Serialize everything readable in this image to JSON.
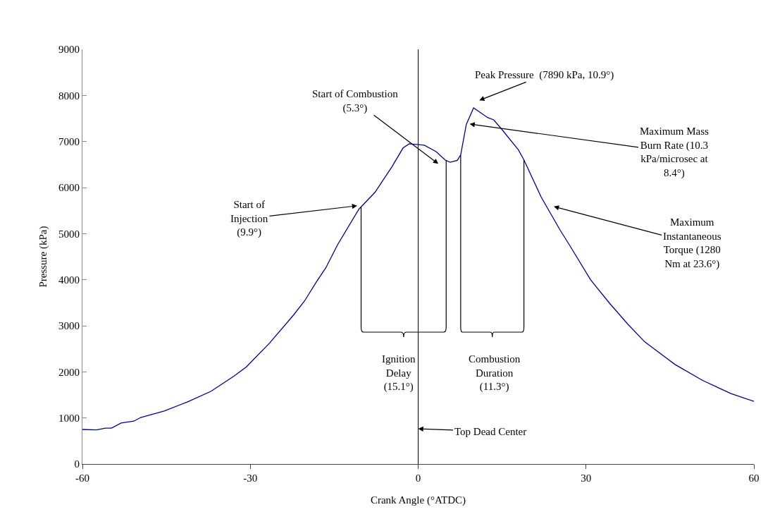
{
  "chart_data": {
    "type": "line",
    "xlabel": "Crank Angle (°ATDC)",
    "ylabel": "Pressure (kPa)",
    "series": [
      {
        "color": "#000099",
        "x": [
          -60,
          -57.5,
          -55.9,
          -54.8,
          -53.1,
          -50.8,
          -49.6,
          -45.4,
          -41.2,
          -37,
          -32.9,
          -30.7,
          -26.6,
          -22.3,
          -20.3,
          -18.2,
          -16.5,
          -14.4,
          -10.6,
          -7.7,
          -4.7,
          -2.7,
          -1.6,
          1.1,
          3.2,
          4.8,
          5.7,
          7,
          7.6,
          8.6,
          9.9,
          11.1,
          12.4,
          13.5,
          14.9,
          17.9,
          18.9,
          22,
          25.4,
          27,
          30.8,
          34.2,
          37.5,
          40.5,
          45.9,
          50.9,
          55.9,
          60
        ],
        "values": [
          750,
          740,
          780,
          780,
          890,
          930,
          1010,
          1150,
          1350,
          1580,
          1910,
          2110,
          2620,
          3230,
          3540,
          3950,
          4260,
          4760,
          5530,
          5900,
          6450,
          6860,
          6950,
          6920,
          6780,
          6600,
          6550,
          6590,
          6710,
          7370,
          7730,
          7630,
          7520,
          7470,
          7270,
          6820,
          6600,
          5790,
          5070,
          4760,
          4000,
          3490,
          3030,
          2650,
          2160,
          1810,
          1530,
          1360
        ]
      }
    ],
    "xlim": [
      -60,
      60
    ],
    "xticks": [
      -60,
      -30,
      0,
      30,
      60
    ],
    "ylim": [
      0,
      9000
    ],
    "yticks": [
      0,
      1000,
      2000,
      3000,
      4000,
      5000,
      6000,
      7000,
      8000,
      9000
    ],
    "marker": "none",
    "line_style": "solid",
    "ref_lines": [
      {
        "axis": "x",
        "value": 0,
        "label": "Top Dead Center",
        "color": "#000000"
      }
    ],
    "annotations": [
      "Peak Pressure  (7890 kPa, 10.9°)",
      "Start of Combustion\n(5.3°)",
      {
        "text": "Maximum Mass\nBurn Rate (10.3\nkPa/microsec at\n8.4°)",
        "x": 9.2,
        "y": 7380
      },
      {
        "text": "Start of\nInjection\n(9.9°)",
        "x": -10.9,
        "y": 5605
      },
      "Maximum\nInstantaneous\nTorque (1280\nNm at 23.6°)",
      "Ignition\nDelay\n(15.1°)",
      "Combustion\nDuration\n(11.3°)"
    ]
  }
}
